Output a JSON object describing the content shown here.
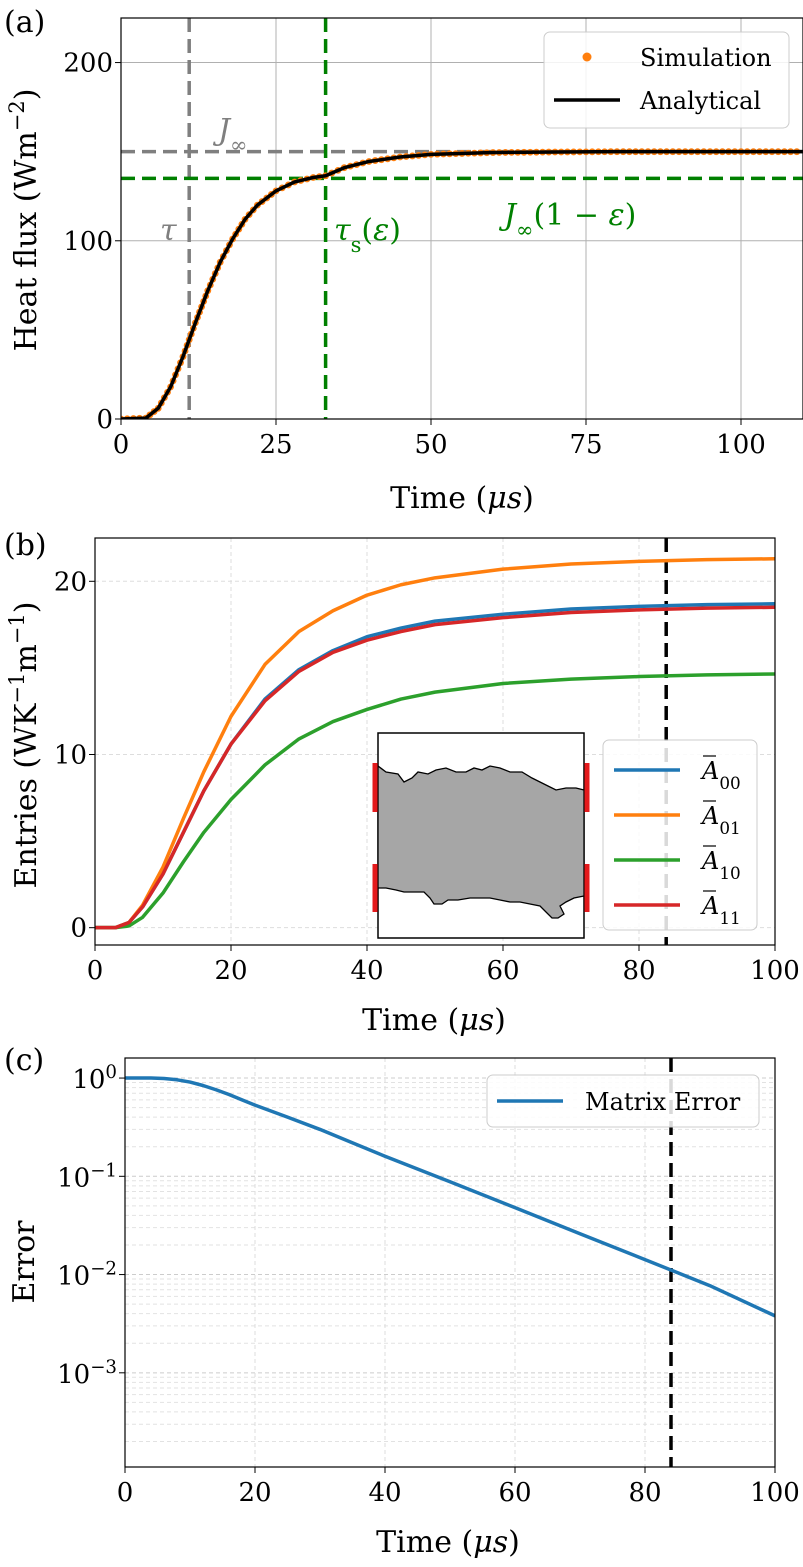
{
  "chart_data": [
    {
      "panel": "(a)",
      "type": "line",
      "xlabel": "Time (μs)",
      "ylabel": "Heat flux (Wm⁻²)",
      "xlim": [
        0,
        110
      ],
      "ylim": [
        0,
        225
      ],
      "xticks": [
        0,
        25,
        50,
        75,
        100
      ],
      "yticks": [
        0,
        100,
        200
      ],
      "grid": true,
      "legend_position": "top-right",
      "series": [
        {
          "name": "Simulation",
          "style": "markers",
          "color": "#ff7f0e",
          "x": [
            0,
            4,
            6,
            8,
            10,
            12,
            14,
            16,
            18,
            20,
            22,
            25,
            28,
            31,
            33,
            36,
            40,
            45,
            50,
            60,
            70,
            80,
            90,
            100,
            110
          ],
          "y": [
            0,
            0.5,
            6,
            18,
            35,
            54,
            72,
            88,
            101,
            112,
            120,
            128,
            133,
            135.5,
            136.5,
            141,
            144.5,
            147,
            148.5,
            149.5,
            149.8,
            150,
            150,
            150,
            150
          ]
        },
        {
          "name": "Analytical",
          "style": "line",
          "color": "#000000",
          "x": [
            0,
            4,
            6,
            8,
            10,
            12,
            14,
            16,
            18,
            20,
            22,
            25,
            28,
            31,
            33,
            36,
            40,
            45,
            50,
            60,
            70,
            80,
            90,
            100,
            110
          ],
          "y": [
            0,
            0.5,
            6,
            18,
            35,
            54,
            72,
            88,
            101,
            112,
            120,
            128,
            133,
            135.5,
            136.5,
            141,
            144.5,
            147,
            148.5,
            149.5,
            149.8,
            150,
            150,
            150,
            150
          ]
        }
      ],
      "reference_lines": [
        {
          "orientation": "horizontal",
          "value": 150,
          "color": "#7f7f7f",
          "label": "J∞"
        },
        {
          "orientation": "vertical",
          "value": 11,
          "color": "#7f7f7f",
          "label": "τ"
        },
        {
          "orientation": "horizontal",
          "value": 135,
          "color": "#008000",
          "label": "J∞(1 − ε)"
        },
        {
          "orientation": "vertical",
          "value": 33,
          "color": "#008000",
          "label": "τs(ε)"
        }
      ]
    },
    {
      "panel": "(b)",
      "type": "line",
      "xlabel": "Time (μs)",
      "ylabel": "Entries (WK⁻¹m⁻¹)",
      "xlim": [
        0,
        100
      ],
      "ylim": [
        -1,
        22.5
      ],
      "xticks": [
        0,
        20,
        40,
        60,
        80,
        100
      ],
      "yticks": [
        0,
        10,
        20
      ],
      "grid": true,
      "legend_position": "lower-right",
      "series": [
        {
          "name": "Ā00",
          "color": "#1f77b4",
          "x": [
            0,
            3,
            5,
            7,
            10,
            13,
            16,
            20,
            25,
            30,
            35,
            40,
            45,
            50,
            60,
            70,
            80,
            90,
            100
          ],
          "y": [
            0,
            0,
            0.3,
            1.2,
            3.1,
            5.5,
            7.9,
            10.6,
            13.2,
            14.9,
            16.0,
            16.8,
            17.3,
            17.7,
            18.1,
            18.4,
            18.55,
            18.65,
            18.7
          ]
        },
        {
          "name": "Ā01",
          "color": "#ff7f0e",
          "x": [
            0,
            3,
            5,
            7,
            10,
            13,
            16,
            20,
            25,
            30,
            35,
            40,
            45,
            50,
            60,
            70,
            80,
            90,
            100
          ],
          "y": [
            0,
            0,
            0.3,
            1.3,
            3.5,
            6.3,
            9.0,
            12.2,
            15.2,
            17.1,
            18.3,
            19.2,
            19.8,
            20.2,
            20.7,
            21.0,
            21.15,
            21.25,
            21.3
          ]
        },
        {
          "name": "Ā10",
          "color": "#2ca02c",
          "x": [
            0,
            3,
            5,
            7,
            10,
            13,
            16,
            20,
            25,
            30,
            35,
            40,
            45,
            50,
            60,
            70,
            80,
            90,
            100
          ],
          "y": [
            0,
            0,
            0.1,
            0.6,
            2.0,
            3.8,
            5.5,
            7.4,
            9.4,
            10.9,
            11.9,
            12.6,
            13.2,
            13.6,
            14.1,
            14.35,
            14.5,
            14.6,
            14.65
          ]
        },
        {
          "name": "Ā11",
          "color": "#d62728",
          "x": [
            0,
            3,
            5,
            7,
            10,
            13,
            16,
            20,
            25,
            30,
            35,
            40,
            45,
            50,
            60,
            70,
            80,
            90,
            100
          ],
          "y": [
            0,
            0,
            0.3,
            1.2,
            3.1,
            5.5,
            7.9,
            10.6,
            13.1,
            14.8,
            15.9,
            16.6,
            17.1,
            17.5,
            17.9,
            18.2,
            18.35,
            18.45,
            18.5
          ]
        }
      ],
      "reference_lines": [
        {
          "orientation": "vertical",
          "value": 84,
          "color": "#000000"
        }
      ]
    },
    {
      "panel": "(c)",
      "type": "line",
      "xlabel": "Time (μs)",
      "ylabel": "Error",
      "yscale": "log",
      "xlim": [
        0,
        100
      ],
      "ylim": [
        0.00011,
        1.6
      ],
      "xticks": [
        0,
        20,
        40,
        60,
        80,
        100
      ],
      "yticks": [
        1,
        0.1,
        0.01,
        0.001
      ],
      "ytick_labels": [
        "10^0",
        "10^-1",
        "10^-2",
        "10^-3"
      ],
      "grid": true,
      "legend_position": "top-right",
      "series": [
        {
          "name": "Matrix Error",
          "color": "#1f77b4",
          "x": [
            0,
            4,
            6,
            8,
            10,
            12,
            14,
            16,
            18,
            20,
            25,
            30,
            40,
            50,
            60,
            70,
            80,
            90,
            100
          ],
          "y": [
            1,
            1,
            0.99,
            0.96,
            0.91,
            0.84,
            0.76,
            0.68,
            0.6,
            0.53,
            0.4,
            0.3,
            0.16,
            0.088,
            0.048,
            0.026,
            0.0142,
            0.0077,
            0.0038
          ]
        }
      ],
      "reference_lines": [
        {
          "orientation": "vertical",
          "value": 84,
          "color": "#000000"
        }
      ]
    }
  ]
}
